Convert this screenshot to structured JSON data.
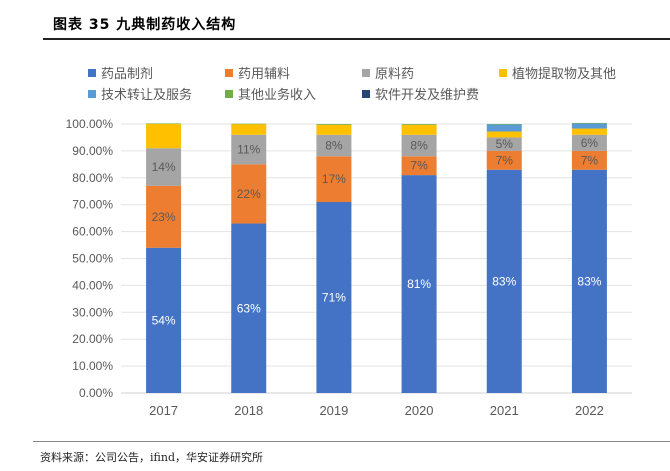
{
  "header": {
    "title": "图表 35  九典制药收入结构"
  },
  "source": "资料来源：公司公告，ifind，华安证券研究所",
  "chart_data": {
    "type": "bar",
    "stacked": true,
    "title": "九典制药收入结构",
    "xlabel": "",
    "ylabel": "",
    "categories": [
      "2017",
      "2018",
      "2019",
      "2020",
      "2021",
      "2022"
    ],
    "ylim": [
      0,
      100
    ],
    "yticks": [
      "0.00%",
      "10.00%",
      "20.00%",
      "30.00%",
      "40.00%",
      "50.00%",
      "60.00%",
      "70.00%",
      "80.00%",
      "90.00%",
      "100.00%"
    ],
    "grid": true,
    "legend_position": "top",
    "series": [
      {
        "name": "药品制剂",
        "color": "#4472C4",
        "values": [
          54,
          63,
          71,
          81,
          83,
          83
        ],
        "labels": [
          "54%",
          "63%",
          "71%",
          "81%",
          "83%",
          "83%"
        ],
        "label_color": "#ffffff"
      },
      {
        "name": "药用辅料",
        "color": "#ED7D31",
        "values": [
          23,
          22,
          17,
          7,
          7,
          7
        ],
        "labels": [
          "23%",
          "22%",
          "17%",
          "7%",
          "7%",
          "7%"
        ],
        "label_color": "#595959"
      },
      {
        "name": "原料药",
        "color": "#A5A5A5",
        "values": [
          14,
          11,
          8,
          8,
          5,
          6
        ],
        "labels": [
          "14%",
          "11%",
          "8%",
          "8%",
          "5%",
          "6%"
        ],
        "label_color": "#595959"
      },
      {
        "name": "植物提取物及其他",
        "color": "#FFC000",
        "values": [
          9,
          4,
          3.7,
          3.7,
          2.2,
          2.3
        ],
        "labels": [],
        "label_color": "#595959"
      },
      {
        "name": "技术转让及服务",
        "color": "#5B9BD5",
        "values": [
          0,
          0,
          0,
          0,
          2.6,
          1.9
        ],
        "labels": [],
        "label_color": "#595959"
      },
      {
        "name": "其他业务收入",
        "color": "#70AD47",
        "values": [
          0.2,
          0.1,
          0.3,
          0.3,
          0.2,
          0.2
        ],
        "labels": [],
        "label_color": "#595959"
      },
      {
        "name": "软件开发及维护费",
        "color": "#264478",
        "values": [
          0,
          0,
          0,
          0,
          0,
          0
        ],
        "labels": [],
        "label_color": "#595959"
      }
    ]
  }
}
